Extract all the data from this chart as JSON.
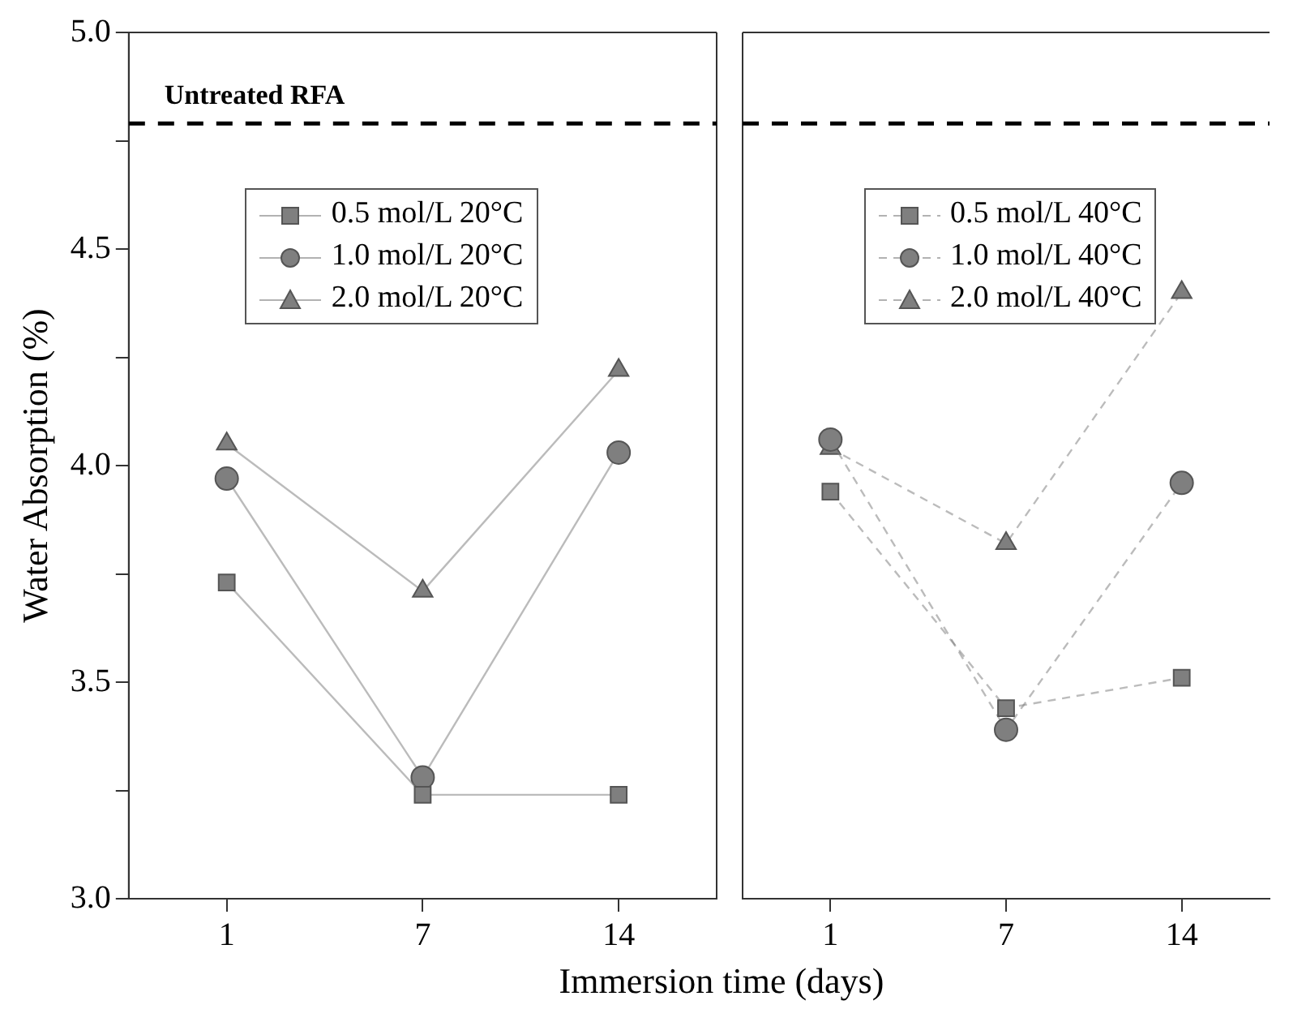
{
  "chart_data": [
    {
      "type": "line",
      "ylabel": "Water Absorption (%)",
      "xlabel": "Immersion time (days)",
      "categories": [
        "1",
        "7",
        "14"
      ],
      "ylim": [
        3.0,
        5.0
      ],
      "yticks": [
        {
          "value": 3,
          "label": "3.0"
        },
        {
          "value": 3.25,
          "label": null
        },
        3.5,
        {
          "value": 3.75,
          "label": null
        },
        {
          "value": 4,
          "label": "4.0"
        },
        {
          "value": 4.25,
          "label": null
        },
        4.5,
        {
          "value": 4.75,
          "label": null
        },
        {
          "value": 5,
          "label": "5.0"
        }
      ],
      "legend": "top",
      "grid": false,
      "ref_lines": [
        {
          "axis": "y",
          "value": 4.79,
          "label": "Untreated RFA",
          "color": "#000000",
          "line_style": "dashed"
        }
      ],
      "series": [
        {
          "name": "0.5 mol/L 20°C",
          "color": "#7f7f7f",
          "marker": "square",
          "line_style": "solid",
          "values": [
            3.73,
            3.24,
            3.24
          ]
        },
        {
          "name": "1.0 mol/L 20°C",
          "color": "#7f7f7f",
          "marker": "circle",
          "line_style": "solid",
          "values": [
            3.97,
            3.28,
            4.03
          ]
        },
        {
          "name": "2.0 mol/L 20°C",
          "color": "#7f7f7f",
          "marker": "triangle",
          "line_style": "solid",
          "values": [
            4.05,
            3.71,
            4.22
          ]
        }
      ]
    },
    {
      "type": "line",
      "categories": [
        "1",
        "7",
        "14"
      ],
      "ylim": [
        3.0,
        5.0
      ],
      "tick_labels": "x",
      "legend": "top",
      "grid": false,
      "ref_lines": [
        {
          "axis": "y",
          "value": 4.79,
          "color": "#000000",
          "line_style": "dashed"
        }
      ],
      "series": [
        {
          "name": "0.5 mol/L 40°C",
          "color": "#7f7f7f",
          "marker": "square",
          "line_style": "dashed",
          "values": [
            3.94,
            3.44,
            3.51
          ]
        },
        {
          "name": "1.0 mol/L 40°C",
          "color": "#7f7f7f",
          "marker": "circle",
          "line_style": "dashed",
          "values": [
            4.06,
            3.39,
            3.96
          ]
        },
        {
          "name": "2.0 mol/L 40°C",
          "color": "#7f7f7f",
          "marker": "triangle",
          "line_style": "dashed",
          "values": [
            4.04,
            3.82,
            4.4
          ]
        }
      ]
    }
  ]
}
